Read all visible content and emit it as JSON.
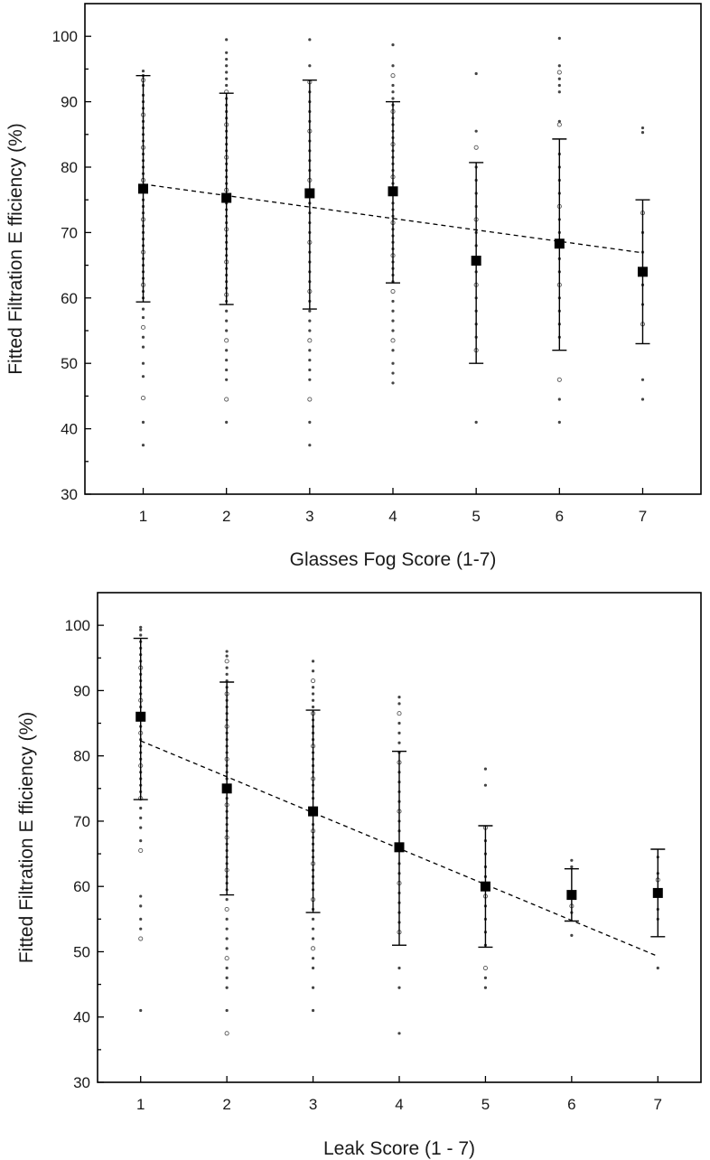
{
  "chart_data": [
    {
      "type": "scatter",
      "title": "",
      "xlabel": "Glasses Fog Score (1-7)",
      "ylabel": "Fitted Filtration E fficiency (%)",
      "xlim": [
        0.3,
        7.7
      ],
      "ylim": [
        30,
        105
      ],
      "x_ticks": [
        1,
        2,
        3,
        4,
        5,
        6,
        7
      ],
      "y_ticks": [
        30,
        40,
        50,
        60,
        70,
        80,
        90,
        100
      ],
      "grid": false,
      "means": {
        "x": [
          1,
          2,
          3,
          4,
          5,
          6,
          7
        ],
        "y": [
          76.7,
          75.3,
          76.0,
          76.3,
          65.7,
          68.3,
          64.0
        ],
        "error_lower": [
          59.4,
          59.0,
          58.3,
          62.3,
          50.0,
          52.0,
          53.0
        ],
        "error_upper": [
          94.0,
          91.3,
          93.3,
          90.0,
          80.7,
          84.3,
          75.0
        ]
      },
      "trend_line": {
        "x": [
          1,
          7
        ],
        "y": [
          77.4,
          66.9
        ]
      },
      "raw_points": [
        {
          "x": 1,
          "y": [
            94.7,
            94.0,
            93.3,
            92.5,
            91.0,
            90.0,
            89.0,
            88.0,
            87.0,
            86.0,
            85.0,
            84.0,
            83.0,
            82.0,
            81.0,
            80.0,
            79.0,
            78.0,
            77.0,
            75.0,
            74.0,
            73.0,
            72.0,
            71.0,
            70.0,
            69.0,
            68.0,
            67.0,
            66.0,
            65.0,
            64.0,
            63.0,
            62.0,
            61.0,
            60.0,
            58.3,
            57.0,
            55.5,
            54.0,
            52.5,
            50.0,
            48.0,
            44.7,
            41.0,
            37.5
          ]
        },
        {
          "x": 2,
          "y": [
            99.5,
            97.5,
            96.5,
            95.5,
            94.5,
            93.5,
            92.5,
            91.5,
            90.5,
            89.5,
            88.5,
            87.5,
            86.5,
            85.5,
            84.5,
            83.5,
            82.5,
            81.5,
            80.5,
            79.5,
            78.5,
            77.5,
            76.5,
            74.5,
            73.5,
            72.5,
            71.5,
            70.5,
            69.5,
            68.5,
            67.5,
            66.5,
            65.5,
            64.5,
            63.5,
            62.5,
            61.5,
            60.5,
            59.5,
            58.0,
            56.5,
            55.0,
            53.5,
            52.0,
            50.5,
            49.0,
            47.5,
            44.5,
            41.0
          ]
        },
        {
          "x": 3,
          "y": [
            99.5,
            95.5,
            93.0,
            91.5,
            90.0,
            88.5,
            87.0,
            85.5,
            84.0,
            82.5,
            81.0,
            79.5,
            78.0,
            74.5,
            73.0,
            71.5,
            70.0,
            68.5,
            67.0,
            65.5,
            64.0,
            62.5,
            61.0,
            59.5,
            58.0,
            56.5,
            55.0,
            53.5,
            52.0,
            50.5,
            49.0,
            47.5,
            44.5,
            41.0,
            37.5
          ]
        },
        {
          "x": 4,
          "y": [
            98.7,
            95.5,
            94.0,
            92.5,
            91.5,
            90.5,
            89.5,
            88.5,
            87.5,
            86.5,
            85.5,
            84.5,
            83.5,
            82.5,
            81.5,
            80.5,
            79.5,
            78.5,
            77.5,
            74.5,
            73.5,
            72.5,
            71.5,
            70.5,
            69.5,
            68.5,
            67.5,
            66.5,
            65.5,
            64.5,
            63.5,
            62.5,
            61.0,
            59.5,
            58.0,
            56.5,
            55.0,
            53.5,
            52.0,
            50.0,
            48.5,
            47.0
          ]
        },
        {
          "x": 5,
          "y": [
            94.3,
            85.5,
            83.0,
            80.0,
            78.0,
            76.0,
            74.0,
            72.0,
            70.0,
            68.0,
            66.0,
            64.0,
            62.0,
            60.0,
            58.0,
            56.0,
            54.0,
            52.0,
            41.0
          ]
        },
        {
          "x": 6,
          "y": [
            99.7,
            95.5,
            94.5,
            93.5,
            92.5,
            91.5,
            87.0,
            86.5,
            82.0,
            80.0,
            78.0,
            76.0,
            74.0,
            72.0,
            70.0,
            66.0,
            64.0,
            62.0,
            60.0,
            58.0,
            56.0,
            54.0,
            47.5,
            44.5,
            41.0
          ]
        },
        {
          "x": 7,
          "y": [
            86.0,
            85.3,
            73.0,
            70.0,
            67.0,
            62.0,
            59.0,
            56.0,
            47.5,
            44.5
          ]
        }
      ]
    },
    {
      "type": "scatter",
      "title": "",
      "xlabel": "Leak Score (1 - 7)",
      "ylabel": "Fitted Filtration E fficiency (%)",
      "xlim": [
        0.5,
        7.5
      ],
      "ylim": [
        30,
        105
      ],
      "x_ticks": [
        1,
        2,
        3,
        4,
        5,
        6,
        7
      ],
      "y_ticks": [
        30,
        40,
        50,
        60,
        70,
        80,
        90,
        100
      ],
      "grid": false,
      "means": {
        "x": [
          1,
          2,
          3,
          4,
          5,
          6,
          7
        ],
        "y": [
          86.0,
          75.0,
          71.5,
          66.0,
          60.0,
          58.7,
          59.0
        ],
        "error_lower": [
          73.3,
          58.7,
          56.0,
          51.0,
          50.7,
          54.7,
          52.3
        ],
        "error_upper": [
          98.0,
          91.3,
          87.0,
          80.7,
          69.3,
          62.7,
          65.7
        ]
      },
      "trend_line": {
        "x": [
          1,
          7
        ],
        "y": [
          82.3,
          49.3
        ]
      },
      "raw_points": [
        {
          "x": 1,
          "y": [
            99.7,
            99.3,
            98.5,
            97.5,
            96.5,
            95.5,
            94.5,
            93.5,
            92.5,
            91.5,
            90.5,
            89.5,
            88.5,
            87.5,
            86.5,
            85.5,
            84.5,
            83.5,
            82.5,
            81.5,
            80.5,
            79.5,
            78.5,
            77.5,
            76.5,
            75.5,
            74.5,
            73.5,
            72.0,
            70.5,
            69.0,
            67.0,
            65.5,
            58.5,
            57.0,
            55.0,
            53.5,
            52.0,
            41.0
          ]
        },
        {
          "x": 2,
          "y": [
            96.0,
            95.3,
            94.5,
            93.5,
            92.5,
            91.5,
            90.5,
            89.5,
            88.5,
            87.5,
            86.5,
            85.5,
            84.5,
            83.5,
            82.5,
            81.5,
            80.5,
            79.5,
            78.5,
            77.5,
            76.5,
            73.5,
            72.5,
            71.5,
            70.5,
            69.5,
            68.5,
            67.5,
            66.5,
            65.5,
            64.5,
            63.5,
            62.5,
            61.5,
            60.5,
            59.5,
            58.0,
            56.5,
            55.0,
            53.5,
            52.0,
            50.5,
            49.0,
            47.5,
            46.0,
            44.5,
            41.0,
            37.5
          ]
        },
        {
          "x": 3,
          "y": [
            94.5,
            93.0,
            91.5,
            90.5,
            89.5,
            88.5,
            87.5,
            86.5,
            85.5,
            84.5,
            83.5,
            82.5,
            81.5,
            80.5,
            79.5,
            78.5,
            77.5,
            76.5,
            75.5,
            74.5,
            73.5,
            69.5,
            68.5,
            67.5,
            66.5,
            65.5,
            64.5,
            63.5,
            62.5,
            61.5,
            60.5,
            59.5,
            58.0,
            56.5,
            55.0,
            53.5,
            52.0,
            50.5,
            49.0,
            47.5,
            44.5,
            41.0
          ]
        },
        {
          "x": 4,
          "y": [
            89.0,
            88.0,
            86.5,
            85.0,
            83.5,
            82.0,
            80.5,
            79.0,
            77.5,
            76.0,
            74.5,
            73.0,
            71.5,
            70.0,
            68.5,
            63.5,
            62.0,
            60.5,
            59.0,
            57.5,
            56.0,
            54.5,
            53.0,
            47.5,
            44.5,
            37.5
          ]
        },
        {
          "x": 5,
          "y": [
            78.0,
            75.5,
            69.0,
            67.0,
            65.0,
            63.0,
            61.5,
            58.5,
            57.0,
            55.0,
            53.0,
            51.0,
            47.5,
            46.0,
            44.5
          ]
        },
        {
          "x": 6,
          "y": [
            64.0,
            63.0,
            57.0,
            56.0,
            52.5
          ]
        },
        {
          "x": 7,
          "y": [
            64.5,
            62.0,
            61.0,
            56.5,
            55.0,
            47.5
          ]
        }
      ]
    }
  ]
}
